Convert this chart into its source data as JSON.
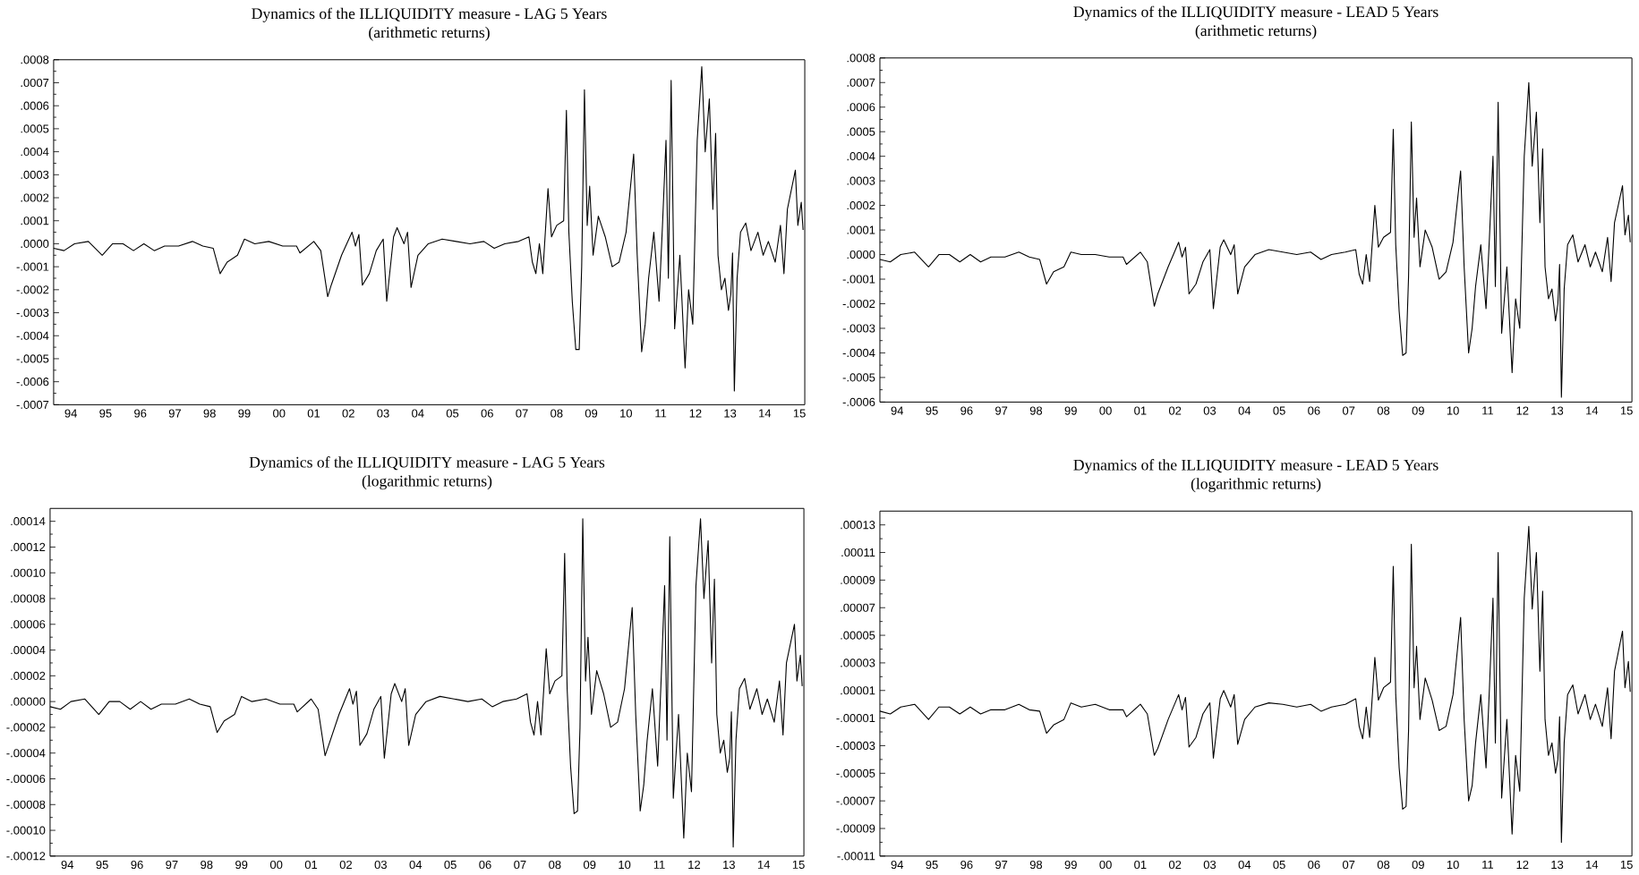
{
  "chart_data": [
    {
      "type": "line",
      "title": "Dynamics of the ILLIQUIDITY measure - LAG 5 Years",
      "subtitle": "(arithmetic returns)",
      "color": "#000000",
      "xlim": [
        "1994-01-01",
        "2015-08-26"
      ],
      "ylim": [
        -0.0007,
        0.0008
      ],
      "xticks": [
        {
          "value": "1994-07",
          "label": "94"
        },
        {
          "value": "1995-07",
          "label": "95"
        },
        {
          "value": "1996-07",
          "label": "96"
        },
        {
          "value": "1997-07",
          "label": "97"
        },
        {
          "value": "1998-07",
          "label": "98"
        },
        {
          "value": "1999-07",
          "label": "99"
        },
        {
          "value": "2000-07",
          "label": "00"
        },
        {
          "value": "2001-07",
          "label": "01"
        },
        {
          "value": "2002-07",
          "label": "02"
        },
        {
          "value": "2003-07",
          "label": "03"
        },
        {
          "value": "2004-07",
          "label": "04"
        },
        {
          "value": "2005-07",
          "label": "05"
        },
        {
          "value": "2006-07",
          "label": "06"
        },
        {
          "value": "2007-07",
          "label": "07"
        },
        {
          "value": "2008-07",
          "label": "08"
        },
        {
          "value": "2009-07",
          "label": "09"
        },
        {
          "value": "2010-07",
          "label": "10"
        },
        {
          "value": "2011-07",
          "label": "11"
        },
        {
          "value": "2012-07",
          "label": "12"
        },
        {
          "value": "2013-07",
          "label": "13"
        },
        {
          "value": "2014-07",
          "label": "14"
        },
        {
          "value": "2015-07",
          "label": "15"
        }
      ],
      "yticks": [
        {
          "value": 0.0008,
          "label": ".0008"
        },
        {
          "value": 0.0007,
          "label": ".0007"
        },
        {
          "value": 0.0006,
          "label": ".0006"
        },
        {
          "value": 0.0005,
          "label": ".0005"
        },
        {
          "value": 0.0004,
          "label": ".0004"
        },
        {
          "value": 0.0003,
          "label": ".0003"
        },
        {
          "value": 0.0002,
          "label": ".0002"
        },
        {
          "value": 0.0001,
          "label": ".0001"
        },
        {
          "value": 0,
          "label": ".0000"
        },
        {
          "value": -0.0001,
          "label": "-.0001"
        },
        {
          "value": -0.0002,
          "label": "-.0002"
        },
        {
          "value": -0.0003,
          "label": "-.0003"
        },
        {
          "value": -0.0004,
          "label": "-.0004"
        },
        {
          "value": -0.0005,
          "label": "-.0005"
        },
        {
          "value": -0.0006,
          "label": "-.0006"
        },
        {
          "value": -0.0007,
          "label": "-.0007"
        }
      ],
      "x": [
        "1994-01-01",
        "1994-04-20",
        "1994-08-08",
        "1995-01-01",
        "1995-05-27",
        "1995-09-13",
        "1996-01-01",
        "1996-04-20",
        "1996-08-08",
        "1996-11-25",
        "1997-03-14",
        "1997-08-08",
        "1998-01-01",
        "1998-04-20",
        "1998-08-08",
        "1998-10-19",
        "1999-01-01",
        "1999-04-20",
        "1999-07-02",
        "1999-10-19",
        "2000-03-14",
        "2000-08-08",
        "2001-01-01",
        "2001-02-06",
        "2001-07-02",
        "2001-09-13",
        "2001-11-25",
        "2002-01-01",
        "2002-04-20",
        "2002-08-08",
        "2002-09-13",
        "2002-10-19",
        "2002-11-25",
        "2003-02-06",
        "2003-04-20",
        "2003-07-02",
        "2003-08-08",
        "2003-10-19",
        "2003-11-25",
        "2004-02-06",
        "2004-03-14",
        "2004-04-20",
        "2004-07-02",
        "2004-10-19",
        "2005-03-14",
        "2005-08-08",
        "2006-01-01",
        "2006-05-27",
        "2006-09-13",
        "2007-01-01",
        "2007-05-27",
        "2007-09-13",
        "2007-10-19",
        "2007-11-25",
        "2008-01-01",
        "2008-02-06",
        "2008-04-01",
        "2008-05-08",
        "2008-07-02",
        "2008-09-13",
        "2008-10-12",
        "2008-11-07",
        "2008-12-13",
        "2009-01-19",
        "2009-02-24",
        "2009-03-22",
        "2009-04-20",
        "2009-05-19",
        "2009-06-14",
        "2009-07-20",
        "2009-09-13",
        "2009-11-25",
        "2010-02-06",
        "2010-04-20",
        "2010-07-02",
        "2010-09-20",
        "2010-10-27",
        "2010-12-13",
        "2011-01-19",
        "2011-02-24",
        "2011-04-20",
        "2011-06-14",
        "2011-07-20",
        "2011-08-26",
        "2011-09-20",
        "2011-10-19",
        "2011-11-25",
        "2012-01-19",
        "2012-03-14",
        "2012-04-20",
        "2012-06-03",
        "2012-07-20",
        "2012-09-06",
        "2012-10-12",
        "2012-11-25",
        "2013-01-01",
        "2013-01-30",
        "2013-02-24",
        "2013-04-01",
        "2013-05-08",
        "2013-06-14",
        "2013-07-09",
        "2013-07-27",
        "2013-08-15",
        "2013-09-13",
        "2013-10-19",
        "2013-12-13",
        "2014-02-06",
        "2014-04-20",
        "2014-06-14",
        "2014-08-08",
        "2014-10-19",
        "2014-12-13",
        "2015-01-19",
        "2015-02-24",
        "2015-05-19",
        "2015-06-14",
        "2015-07-20",
        "2015-08-08"
      ],
      "values": [
        -2e-05,
        -3e-05,
        0,
        1e-05,
        -5e-05,
        0,
        0,
        -3e-05,
        0,
        -3e-05,
        -1e-05,
        -1e-05,
        1e-05,
        -1e-05,
        -2e-05,
        -0.00013,
        -8e-05,
        -5e-05,
        2e-05,
        0,
        1e-05,
        -1e-05,
        -1e-05,
        -4e-05,
        1e-05,
        -3e-05,
        -0.00023,
        -0.00018,
        -5e-05,
        5e-05,
        -1e-05,
        4e-05,
        -0.00018,
        -0.00013,
        -3e-05,
        2e-05,
        -0.00025,
        3e-05,
        7e-05,
        0,
        5e-05,
        -0.00019,
        -5e-05,
        0,
        2e-05,
        1e-05,
        0,
        1e-05,
        -2e-05,
        0,
        1e-05,
        3e-05,
        -8e-05,
        -0.00013,
        0,
        -0.00013,
        0.00024,
        3e-05,
        8e-05,
        0.0001,
        0.00058,
        5e-05,
        -0.00025,
        -0.00046,
        -0.00046,
        -0.0001,
        0.00067,
        8e-05,
        0.00025,
        -5e-05,
        0.00012,
        3e-05,
        -0.0001,
        -8e-05,
        5e-05,
        0.00039,
        -5e-05,
        -0.00047,
        -0.00035,
        -0.00015,
        5e-05,
        -0.00025,
        8e-05,
        0.00045,
        -0.00015,
        0.00071,
        -0.00037,
        -5e-05,
        -0.00054,
        -0.0002,
        -0.00035,
        0.00045,
        0.00077,
        0.0004,
        0.00063,
        0.00015,
        0.00048,
        -5e-05,
        -0.0002,
        -0.00015,
        -0.00029,
        -0.00022,
        -4e-05,
        -0.00064,
        -0.00015,
        5e-05,
        9e-05,
        -3e-05,
        5e-05,
        -5e-05,
        1e-05,
        -8e-05,
        8e-05,
        -0.00013,
        0.00015,
        0.00032,
        8e-05,
        0.00018,
        6e-05
      ]
    },
    {
      "type": "line",
      "title": "Dynamics of the ILLIQUIDITY measure - LEAD 5 Years",
      "subtitle": "(arithmetic returns)",
      "color": "#000000",
      "xlim": [
        "1994-01-01",
        "2015-08-26"
      ],
      "ylim": [
        -0.0006,
        0.0008
      ],
      "xticks": [
        {
          "value": "1994-07",
          "label": "94"
        },
        {
          "value": "1995-07",
          "label": "95"
        },
        {
          "value": "1996-07",
          "label": "96"
        },
        {
          "value": "1997-07",
          "label": "97"
        },
        {
          "value": "1998-07",
          "label": "98"
        },
        {
          "value": "1999-07",
          "label": "99"
        },
        {
          "value": "2000-07",
          "label": "00"
        },
        {
          "value": "2001-07",
          "label": "01"
        },
        {
          "value": "2002-07",
          "label": "02"
        },
        {
          "value": "2003-07",
          "label": "03"
        },
        {
          "value": "2004-07",
          "label": "04"
        },
        {
          "value": "2005-07",
          "label": "05"
        },
        {
          "value": "2006-07",
          "label": "06"
        },
        {
          "value": "2007-07",
          "label": "07"
        },
        {
          "value": "2008-07",
          "label": "08"
        },
        {
          "value": "2009-07",
          "label": "09"
        },
        {
          "value": "2010-07",
          "label": "10"
        },
        {
          "value": "2011-07",
          "label": "11"
        },
        {
          "value": "2012-07",
          "label": "12"
        },
        {
          "value": "2013-07",
          "label": "13"
        },
        {
          "value": "2014-07",
          "label": "14"
        },
        {
          "value": "2015-07",
          "label": "15"
        }
      ],
      "yticks": [
        {
          "value": 0.0008,
          "label": ".0008"
        },
        {
          "value": 0.0007,
          "label": ".0007"
        },
        {
          "value": 0.0006,
          "label": ".0006"
        },
        {
          "value": 0.0005,
          "label": ".0005"
        },
        {
          "value": 0.0004,
          "label": ".0004"
        },
        {
          "value": 0.0003,
          "label": ".0003"
        },
        {
          "value": 0.0002,
          "label": ".0002"
        },
        {
          "value": 0.0001,
          "label": ".0001"
        },
        {
          "value": 0,
          "label": ".0000"
        },
        {
          "value": -0.0001,
          "label": "-.0001"
        },
        {
          "value": -0.0002,
          "label": "-.0002"
        },
        {
          "value": -0.0003,
          "label": "-.0003"
        },
        {
          "value": -0.0004,
          "label": "-.0004"
        },
        {
          "value": -0.0005,
          "label": "-.0005"
        },
        {
          "value": -0.0006,
          "label": "-.0006"
        }
      ],
      "x": [
        "1994-01-01",
        "1994-04-20",
        "1994-08-08",
        "1995-01-01",
        "1995-05-27",
        "1995-09-13",
        "1996-01-01",
        "1996-04-20",
        "1996-08-08",
        "1996-11-25",
        "1997-03-14",
        "1997-08-08",
        "1998-01-01",
        "1998-04-20",
        "1998-08-08",
        "1998-10-19",
        "1999-01-01",
        "1999-04-20",
        "1999-07-02",
        "1999-10-19",
        "2000-03-14",
        "2000-08-08",
        "2001-01-01",
        "2001-02-06",
        "2001-07-02",
        "2001-09-13",
        "2001-11-25",
        "2002-01-01",
        "2002-04-20",
        "2002-08-08",
        "2002-09-13",
        "2002-10-19",
        "2002-11-25",
        "2003-02-06",
        "2003-04-20",
        "2003-07-02",
        "2003-08-08",
        "2003-10-19",
        "2003-11-25",
        "2004-02-06",
        "2004-03-14",
        "2004-04-20",
        "2004-07-02",
        "2004-10-19",
        "2005-03-14",
        "2005-08-08",
        "2006-01-01",
        "2006-05-27",
        "2006-09-13",
        "2007-01-01",
        "2007-05-27",
        "2007-09-13",
        "2007-10-19",
        "2007-11-25",
        "2008-01-01",
        "2008-02-06",
        "2008-04-01",
        "2008-05-08",
        "2008-07-02",
        "2008-09-13",
        "2008-10-12",
        "2008-11-07",
        "2008-12-13",
        "2009-01-19",
        "2009-02-24",
        "2009-03-22",
        "2009-04-20",
        "2009-05-19",
        "2009-06-14",
        "2009-07-20",
        "2009-09-13",
        "2009-11-25",
        "2010-02-06",
        "2010-04-20",
        "2010-07-02",
        "2010-09-20",
        "2010-10-27",
        "2010-12-13",
        "2011-01-19",
        "2011-02-24",
        "2011-04-20",
        "2011-06-14",
        "2011-07-20",
        "2011-08-26",
        "2011-09-20",
        "2011-10-19",
        "2011-11-25",
        "2012-01-19",
        "2012-03-14",
        "2012-04-20",
        "2012-06-03",
        "2012-07-20",
        "2012-09-06",
        "2012-10-12",
        "2012-11-25",
        "2013-01-01",
        "2013-01-30",
        "2013-02-24",
        "2013-04-01",
        "2013-05-08",
        "2013-06-14",
        "2013-07-09",
        "2013-07-27",
        "2013-08-15",
        "2013-09-13",
        "2013-10-19",
        "2013-12-13",
        "2014-02-06",
        "2014-04-20",
        "2014-06-14",
        "2014-08-08",
        "2014-10-19",
        "2014-12-13",
        "2015-01-19",
        "2015-02-24",
        "2015-05-19",
        "2015-06-14",
        "2015-07-20",
        "2015-08-08"
      ],
      "values": [
        -2e-05,
        -3e-05,
        0,
        1e-05,
        -5e-05,
        0,
        0,
        -3e-05,
        0,
        -3e-05,
        -1e-05,
        -1e-05,
        1e-05,
        -1e-05,
        -2e-05,
        -0.00012,
        -7e-05,
        -5e-05,
        1e-05,
        0,
        0,
        -1e-05,
        -1e-05,
        -4e-05,
        1e-05,
        -3e-05,
        -0.00021,
        -0.00016,
        -5e-05,
        5e-05,
        -1e-05,
        3e-05,
        -0.00016,
        -0.00012,
        -3e-05,
        2e-05,
        -0.00022,
        3e-05,
        6e-05,
        0,
        4e-05,
        -0.00016,
        -5e-05,
        0,
        2e-05,
        1e-05,
        0,
        1e-05,
        -2e-05,
        0,
        1e-05,
        2e-05,
        -8e-05,
        -0.00012,
        0,
        -0.00011,
        0.0002,
        3e-05,
        7e-05,
        9e-05,
        0.00051,
        4e-05,
        -0.00023,
        -0.00041,
        -0.0004,
        -9e-05,
        0.00054,
        7e-05,
        0.00023,
        -5e-05,
        0.0001,
        3e-05,
        -0.0001,
        -7e-05,
        5e-05,
        0.00034,
        -5e-05,
        -0.0004,
        -0.0003,
        -0.00013,
        4e-05,
        -0.00022,
        7e-05,
        0.0004,
        -0.00013,
        0.00062,
        -0.00032,
        -5e-05,
        -0.00048,
        -0.00018,
        -0.0003,
        0.0004,
        0.0007,
        0.00036,
        0.00058,
        0.00013,
        0.00043,
        -5e-05,
        -0.00018,
        -0.00014,
        -0.00027,
        -0.0002,
        -4e-05,
        -0.00058,
        -0.00014,
        4e-05,
        8e-05,
        -3e-05,
        4e-05,
        -5e-05,
        1e-05,
        -7e-05,
        7e-05,
        -0.00011,
        0.00013,
        0.00028,
        8e-05,
        0.00016,
        5e-05
      ]
    },
    {
      "type": "line",
      "title": "Dynamics of the ILLIQUIDITY measure - LAG 5 Years",
      "subtitle": "(logarithmic returns)",
      "color": "#000000",
      "xlim": [
        "1994-01-01",
        "2015-08-26"
      ],
      "ylim": [
        -0.00012,
        0.00015
      ],
      "xticks": [
        {
          "value": "1994-07",
          "label": "94"
        },
        {
          "value": "1995-07",
          "label": "95"
        },
        {
          "value": "1996-07",
          "label": "96"
        },
        {
          "value": "1997-07",
          "label": "97"
        },
        {
          "value": "1998-07",
          "label": "98"
        },
        {
          "value": "1999-07",
          "label": "99"
        },
        {
          "value": "2000-07",
          "label": "00"
        },
        {
          "value": "2001-07",
          "label": "01"
        },
        {
          "value": "2002-07",
          "label": "02"
        },
        {
          "value": "2003-07",
          "label": "03"
        },
        {
          "value": "2004-07",
          "label": "04"
        },
        {
          "value": "2005-07",
          "label": "05"
        },
        {
          "value": "2006-07",
          "label": "06"
        },
        {
          "value": "2007-07",
          "label": "07"
        },
        {
          "value": "2008-07",
          "label": "08"
        },
        {
          "value": "2009-07",
          "label": "09"
        },
        {
          "value": "2010-07",
          "label": "10"
        },
        {
          "value": "2011-07",
          "label": "11"
        },
        {
          "value": "2012-07",
          "label": "12"
        },
        {
          "value": "2013-07",
          "label": "13"
        },
        {
          "value": "2014-07",
          "label": "14"
        },
        {
          "value": "2015-07",
          "label": "15"
        }
      ],
      "yticks": [
        {
          "value": 0.00014,
          "label": ".00014"
        },
        {
          "value": 0.00012,
          "label": ".00012"
        },
        {
          "value": 0.0001,
          "label": ".00010"
        },
        {
          "value": 8e-05,
          "label": ".00008"
        },
        {
          "value": 6e-05,
          "label": ".00006"
        },
        {
          "value": 4e-05,
          "label": ".00004"
        },
        {
          "value": 2e-05,
          "label": ".00002"
        },
        {
          "value": 0,
          "label": ".00000"
        },
        {
          "value": -2e-05,
          "label": "-.00002"
        },
        {
          "value": -4e-05,
          "label": "-.00004"
        },
        {
          "value": -6e-05,
          "label": "-.00006"
        },
        {
          "value": -8e-05,
          "label": "-.00008"
        },
        {
          "value": -0.0001,
          "label": "-.00010"
        },
        {
          "value": -0.00012,
          "label": "-.00012"
        }
      ],
      "x": [
        "1994-01-01",
        "1994-04-20",
        "1994-08-08",
        "1995-01-01",
        "1995-05-27",
        "1995-09-13",
        "1996-01-01",
        "1996-04-20",
        "1996-08-08",
        "1996-11-25",
        "1997-03-14",
        "1997-08-08",
        "1998-01-01",
        "1998-04-20",
        "1998-08-08",
        "1998-10-19",
        "1999-01-01",
        "1999-04-20",
        "1999-07-02",
        "1999-10-19",
        "2000-03-14",
        "2000-08-08",
        "2001-01-01",
        "2001-02-06",
        "2001-07-02",
        "2001-09-13",
        "2001-11-25",
        "2002-01-01",
        "2002-04-20",
        "2002-08-08",
        "2002-09-13",
        "2002-10-19",
        "2002-11-25",
        "2003-02-06",
        "2003-04-20",
        "2003-07-02",
        "2003-08-08",
        "2003-10-19",
        "2003-11-25",
        "2004-02-06",
        "2004-03-14",
        "2004-04-20",
        "2004-07-02",
        "2004-10-19",
        "2005-03-14",
        "2005-08-08",
        "2006-01-01",
        "2006-05-27",
        "2006-09-13",
        "2007-01-01",
        "2007-05-27",
        "2007-09-13",
        "2007-10-19",
        "2007-11-25",
        "2008-01-01",
        "2008-02-06",
        "2008-04-01",
        "2008-05-08",
        "2008-07-02",
        "2008-09-13",
        "2008-10-12",
        "2008-11-07",
        "2008-12-13",
        "2009-01-19",
        "2009-02-24",
        "2009-03-22",
        "2009-04-20",
        "2009-05-19",
        "2009-06-14",
        "2009-07-20",
        "2009-09-13",
        "2009-11-25",
        "2010-02-06",
        "2010-04-20",
        "2010-07-02",
        "2010-09-20",
        "2010-10-27",
        "2010-12-13",
        "2011-01-19",
        "2011-02-24",
        "2011-04-20",
        "2011-06-14",
        "2011-07-20",
        "2011-08-26",
        "2011-09-20",
        "2011-10-19",
        "2011-11-25",
        "2012-01-19",
        "2012-03-14",
        "2012-04-20",
        "2012-06-03",
        "2012-07-20",
        "2012-09-06",
        "2012-10-12",
        "2012-11-25",
        "2013-01-01",
        "2013-01-30",
        "2013-02-24",
        "2013-04-01",
        "2013-05-08",
        "2013-06-14",
        "2013-07-09",
        "2013-07-27",
        "2013-08-15",
        "2013-09-13",
        "2013-10-19",
        "2013-12-13",
        "2014-02-06",
        "2014-04-20",
        "2014-06-14",
        "2014-08-08",
        "2014-10-19",
        "2014-12-13",
        "2015-01-19",
        "2015-02-24",
        "2015-05-19",
        "2015-06-14",
        "2015-07-20",
        "2015-08-08"
      ],
      "values": [
        -4e-06,
        -6e-06,
        0,
        2e-06,
        -1e-05,
        0,
        0,
        -6e-06,
        0,
        -6e-06,
        -2e-06,
        -2e-06,
        2e-06,
        -2e-06,
        -4e-06,
        -2.4e-05,
        -1.5e-05,
        -1e-05,
        4e-06,
        0,
        2e-06,
        -2e-06,
        -2e-06,
        -8e-06,
        2e-06,
        -6e-06,
        -4.2e-05,
        -3.4e-05,
        -1e-05,
        1e-05,
        -2e-06,
        8e-06,
        -3.4e-05,
        -2.5e-05,
        -6e-06,
        4e-06,
        -4.4e-05,
        6e-06,
        1.4e-05,
        0,
        1e-05,
        -3.4e-05,
        -1e-05,
        0,
        4e-06,
        2e-06,
        0,
        2e-06,
        -4e-06,
        0,
        2e-06,
        6e-06,
        -1.6e-05,
        -2.6e-05,
        0,
        -2.6e-05,
        4.1e-05,
        6e-06,
        1.6e-05,
        2e-05,
        0.000115,
        1e-05,
        -5e-05,
        -8.7e-05,
        -8.5e-05,
        -2e-05,
        0.000142,
        1.6e-05,
        5e-05,
        -1e-05,
        2.4e-05,
        6e-06,
        -2e-05,
        -1.6e-05,
        1e-05,
        7.3e-05,
        -1e-05,
        -8.5e-05,
        -6.5e-05,
        -3e-05,
        1e-05,
        -5e-05,
        1.6e-05,
        9e-05,
        -3e-05,
        0.000128,
        -7.5e-05,
        -1e-05,
        -0.000106,
        -4e-05,
        -7e-05,
        9e-05,
        0.000142,
        8e-05,
        0.000125,
        3e-05,
        9.5e-05,
        -1e-05,
        -4e-05,
        -3e-05,
        -5.5e-05,
        -4.4e-05,
        -8e-06,
        -0.000113,
        -3e-05,
        1e-05,
        1.8e-05,
        -6e-06,
        1e-05,
        -1e-05,
        2e-06,
        -1.6e-05,
        1.6e-05,
        -2.6e-05,
        3e-05,
        6e-05,
        1.6e-05,
        3.6e-05,
        1.2e-05
      ]
    },
    {
      "type": "line",
      "title": "Dynamics of the ILLIQUIDITY measure - LEAD 5 Years",
      "subtitle": "(logarithmic returns)",
      "color": "#000000",
      "xlim": [
        "1994-01-01",
        "2015-08-26"
      ],
      "ylim": [
        -0.00011,
        0.00014
      ],
      "xticks": [
        {
          "value": "1994-07",
          "label": "94"
        },
        {
          "value": "1995-07",
          "label": "95"
        },
        {
          "value": "1996-07",
          "label": "96"
        },
        {
          "value": "1997-07",
          "label": "97"
        },
        {
          "value": "1998-07",
          "label": "98"
        },
        {
          "value": "1999-07",
          "label": "99"
        },
        {
          "value": "2000-07",
          "label": "00"
        },
        {
          "value": "2001-07",
          "label": "01"
        },
        {
          "value": "2002-07",
          "label": "02"
        },
        {
          "value": "2003-07",
          "label": "03"
        },
        {
          "value": "2004-07",
          "label": "04"
        },
        {
          "value": "2005-07",
          "label": "05"
        },
        {
          "value": "2006-07",
          "label": "06"
        },
        {
          "value": "2007-07",
          "label": "07"
        },
        {
          "value": "2008-07",
          "label": "08"
        },
        {
          "value": "2009-07",
          "label": "09"
        },
        {
          "value": "2010-07",
          "label": "10"
        },
        {
          "value": "2011-07",
          "label": "11"
        },
        {
          "value": "2012-07",
          "label": "12"
        },
        {
          "value": "2013-07",
          "label": "13"
        },
        {
          "value": "2014-07",
          "label": "14"
        },
        {
          "value": "2015-07",
          "label": "15"
        }
      ],
      "yticks": [
        {
          "value": 0.00013,
          "label": ".00013"
        },
        {
          "value": 0.00011,
          "label": ".00011"
        },
        {
          "value": 9e-05,
          "label": ".00009"
        },
        {
          "value": 7e-05,
          "label": ".00007"
        },
        {
          "value": 5e-05,
          "label": ".00005"
        },
        {
          "value": 3e-05,
          "label": ".00003"
        },
        {
          "value": 1e-05,
          "label": ".00001"
        },
        {
          "value": -1e-05,
          "label": "-.00001"
        },
        {
          "value": -3e-05,
          "label": "-.00003"
        },
        {
          "value": -5e-05,
          "label": "-.00005"
        },
        {
          "value": -7e-05,
          "label": "-.00007"
        },
        {
          "value": -9e-05,
          "label": "-.00009"
        },
        {
          "value": -0.00011,
          "label": "-.00011"
        }
      ],
      "x": [
        "1994-01-01",
        "1994-04-20",
        "1994-08-08",
        "1995-01-01",
        "1995-05-27",
        "1995-09-13",
        "1996-01-01",
        "1996-04-20",
        "1996-08-08",
        "1996-11-25",
        "1997-03-14",
        "1997-08-08",
        "1998-01-01",
        "1998-04-20",
        "1998-08-08",
        "1998-10-19",
        "1999-01-01",
        "1999-04-20",
        "1999-07-02",
        "1999-10-19",
        "2000-03-14",
        "2000-08-08",
        "2001-01-01",
        "2001-02-06",
        "2001-07-02",
        "2001-09-13",
        "2001-11-25",
        "2002-01-01",
        "2002-04-20",
        "2002-08-08",
        "2002-09-13",
        "2002-10-19",
        "2002-11-25",
        "2003-02-06",
        "2003-04-20",
        "2003-07-02",
        "2003-08-08",
        "2003-10-19",
        "2003-11-25",
        "2004-02-06",
        "2004-03-14",
        "2004-04-20",
        "2004-07-02",
        "2004-10-19",
        "2005-03-14",
        "2005-08-08",
        "2006-01-01",
        "2006-05-27",
        "2006-09-13",
        "2007-01-01",
        "2007-05-27",
        "2007-09-13",
        "2007-10-19",
        "2007-11-25",
        "2008-01-01",
        "2008-02-06",
        "2008-04-01",
        "2008-05-08",
        "2008-07-02",
        "2008-09-13",
        "2008-10-12",
        "2008-11-07",
        "2008-12-13",
        "2009-01-19",
        "2009-02-24",
        "2009-03-22",
        "2009-04-20",
        "2009-05-19",
        "2009-06-14",
        "2009-07-20",
        "2009-09-13",
        "2009-11-25",
        "2010-02-06",
        "2010-04-20",
        "2010-07-02",
        "2010-09-20",
        "2010-10-27",
        "2010-12-13",
        "2011-01-19",
        "2011-02-24",
        "2011-04-20",
        "2011-06-14",
        "2011-07-20",
        "2011-08-26",
        "2011-09-20",
        "2011-10-19",
        "2011-11-25",
        "2012-01-19",
        "2012-03-14",
        "2012-04-20",
        "2012-06-03",
        "2012-07-20",
        "2012-09-06",
        "2012-10-12",
        "2012-11-25",
        "2013-01-01",
        "2013-01-30",
        "2013-02-24",
        "2013-04-01",
        "2013-05-08",
        "2013-06-14",
        "2013-07-09",
        "2013-07-27",
        "2013-08-15",
        "2013-09-13",
        "2013-10-19",
        "2013-12-13",
        "2014-02-06",
        "2014-04-20",
        "2014-06-14",
        "2014-08-08",
        "2014-10-19",
        "2014-12-13",
        "2015-01-19",
        "2015-02-24",
        "2015-05-19",
        "2015-06-14",
        "2015-07-20",
        "2015-08-08"
      ],
      "values": [
        -5e-06,
        -7e-06,
        -2e-06,
        0,
        -1.1e-05,
        -2e-06,
        -2e-06,
        -7e-06,
        -2e-06,
        -7e-06,
        -4e-06,
        -4e-06,
        0,
        -4e-06,
        -5e-06,
        -2.1e-05,
        -1.5e-05,
        -1.1e-05,
        1e-06,
        -2e-06,
        0,
        -4e-06,
        -4e-06,
        -9e-06,
        0,
        -7e-06,
        -3.7e-05,
        -3.2e-05,
        -1.1e-05,
        7e-06,
        -4e-06,
        5e-06,
        -3.1e-05,
        -2.4e-05,
        -7e-06,
        1e-06,
        -3.9e-05,
        4e-06,
        1e-05,
        -2e-06,
        7e-06,
        -2.9e-05,
        -1.1e-05,
        -2e-06,
        1e-06,
        0,
        -2e-06,
        0,
        -5e-06,
        -2e-06,
        0,
        4e-06,
        -1.6e-05,
        -2.5e-05,
        -2e-06,
        -2.4e-05,
        3.4e-05,
        3e-06,
        1.2e-05,
        1.6e-05,
        0.0001,
        7e-06,
        -4.6e-05,
        -7.6e-05,
        -7.4e-05,
        -1.9e-05,
        0.000116,
        1.2e-05,
        4.2e-05,
        -1.1e-05,
        1.9e-05,
        3e-06,
        -1.9e-05,
        -1.6e-05,
        7e-06,
        6.3e-05,
        -1.1e-05,
        -7e-05,
        -5.9e-05,
        -2.8e-05,
        7e-06,
        -4.6e-05,
        1.2e-05,
        7.7e-05,
        -2.8e-05,
        0.00011,
        -6.8e-05,
        -1.1e-05,
        -9.4e-05,
        -3.7e-05,
        -6.3e-05,
        7.7e-05,
        0.000129,
        6.9e-05,
        0.00011,
        2.4e-05,
        8.2e-05,
        -1.1e-05,
        -3.7e-05,
        -2.8e-05,
        -5e-05,
        -4e-05,
        -9e-06,
        -0.0001,
        -2.8e-05,
        7e-06,
        1.4e-05,
        -7e-06,
        7e-06,
        -1.1e-05,
        0,
        -1.6e-05,
        1.2e-05,
        -2.5e-05,
        2.4e-05,
        5.3e-05,
        1.2e-05,
        3.1e-05,
        9e-06
      ]
    }
  ]
}
